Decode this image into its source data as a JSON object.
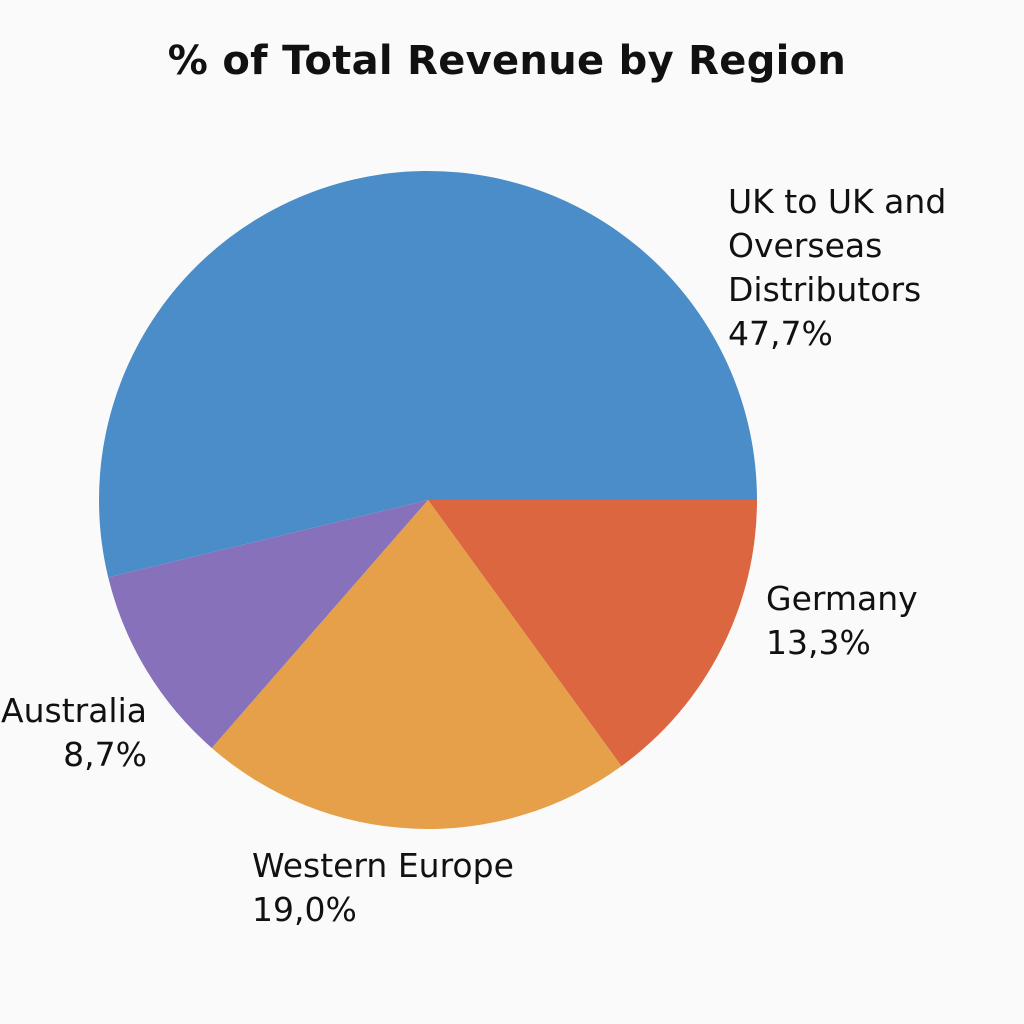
{
  "chart_data": {
    "type": "pie",
    "title": "% of Total Revenue by Region",
    "slices": [
      {
        "label": "UK to UK and\nOverseas\nDistributors",
        "percent_text": "47,7%",
        "value": 47.7,
        "color": "#4a8dc8"
      },
      {
        "label": "Germany",
        "percent_text": "13,3%",
        "value": 13.3,
        "color": "#db6640"
      },
      {
        "label": "Western Europe",
        "percent_text": "19,0%",
        "value": 19.0,
        "color": "#e5a049"
      },
      {
        "label": "Australia",
        "percent_text": "8,7%",
        "value": 8.7,
        "color": "#8771bb"
      }
    ]
  }
}
